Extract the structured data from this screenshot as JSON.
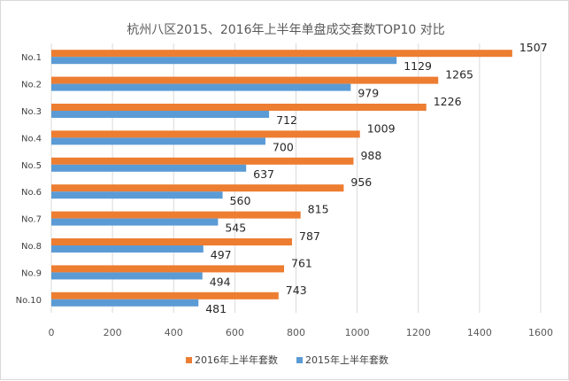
{
  "chart_data": {
    "type": "bar",
    "orientation": "horizontal",
    "title": "杭州八区2015、2016年上半年单盘成交套数TOP10 对比",
    "categories": [
      "No.1",
      "No.2",
      "No.3",
      "No.4",
      "No.5",
      "No.6",
      "No.7",
      "No.8",
      "No.9",
      "No.10"
    ],
    "series": [
      {
        "name": "2016年上半年套数",
        "color": "#ED7D31",
        "values": [
          1507,
          1265,
          1226,
          1009,
          988,
          956,
          815,
          787,
          761,
          743
        ]
      },
      {
        "name": "2015年上半年套数",
        "color": "#5B9BD5",
        "values": [
          1129,
          979,
          712,
          700,
          637,
          560,
          545,
          497,
          494,
          481
        ]
      }
    ],
    "xlim": [
      0,
      1600
    ],
    "xticks": [
      0,
      200,
      400,
      600,
      800,
      1000,
      1200,
      1400,
      1600
    ],
    "grid": true,
    "legend": "bottom"
  }
}
